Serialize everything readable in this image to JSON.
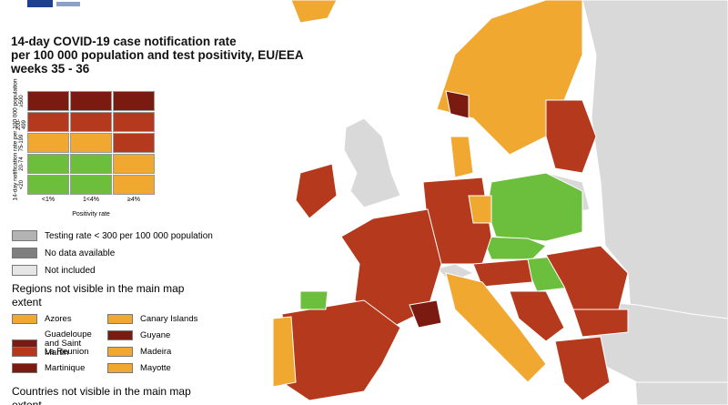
{
  "title": [
    "14-day COVID-19 case notification rate",
    "per 100 000 population and test positivity, EU/EEA",
    "weeks 35 - 36"
  ],
  "matrix": {
    "y_label": "14-day notification rate per 100 000 population",
    "x_label": "Positivity rate",
    "rows": [
      "≥500",
      "200-499",
      "75-199",
      "20-74",
      "<20"
    ],
    "columns": [
      "<1%",
      "1<4%",
      "≥4%"
    ],
    "cells": [
      [
        "#7b1a10",
        "#7b1a10",
        "#7b1a10"
      ],
      [
        "#b5391c",
        "#b5391c",
        "#b5391c"
      ],
      [
        "#f0a830",
        "#f0a830",
        "#b5391c"
      ],
      [
        "#6cbf3c",
        "#6cbf3c",
        "#f0a830"
      ],
      [
        "#6cbf3c",
        "#6cbf3c",
        "#f0a830"
      ]
    ]
  },
  "legend": [
    {
      "label": "Testing rate < 300 per 100 000 population",
      "color": "#b3b3b3"
    },
    {
      "label": "No data available",
      "color": "#7f7f7f"
    },
    {
      "label": "Not included",
      "color": "#e6e6e6"
    }
  ],
  "regions_heading": "Regions not visible in the main map extent",
  "regions": [
    {
      "label": "Azores",
      "color": "#f0a830"
    },
    {
      "label": "Canary Islands",
      "color": "#f0a830"
    },
    {
      "label": "Guadeloupe and Saint Martin",
      "color": "#7b1a10"
    },
    {
      "label": "Guyane",
      "color": "#7b1a10"
    },
    {
      "label": "La Reunion",
      "color": "#b5391c"
    },
    {
      "label": "Madeira",
      "color": "#f0a830"
    },
    {
      "label": "Martinique",
      "color": "#7b1a10"
    },
    {
      "label": "Mayotte",
      "color": "#f0a830"
    }
  ],
  "countries_heading": "Countries not visible in the main map extent"
}
